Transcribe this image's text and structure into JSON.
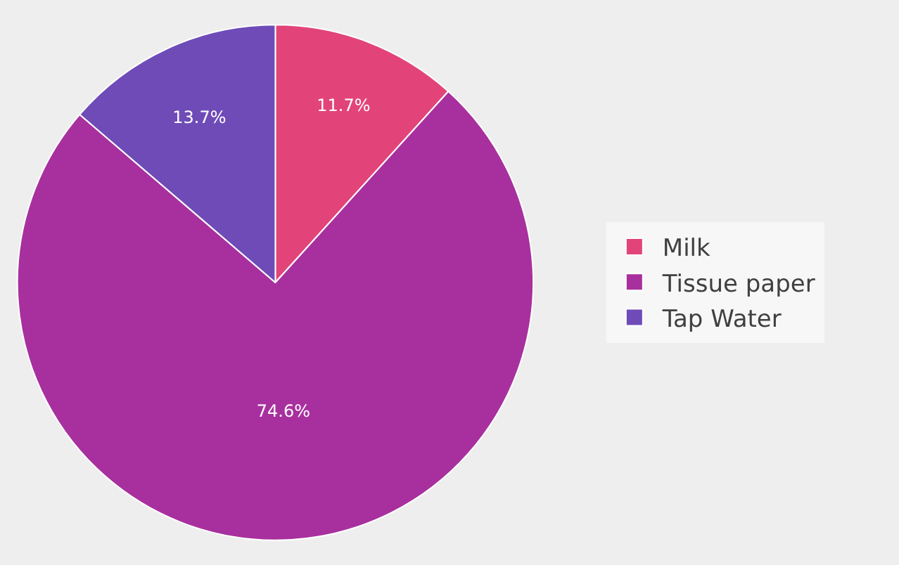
{
  "chart_data": {
    "type": "pie",
    "categories": [
      "Milk",
      "Tissue paper",
      "Tap Water"
    ],
    "values": [
      11.7,
      74.6,
      13.7
    ],
    "colors": [
      "#e2447a",
      "#a8309e",
      "#6f4bb8"
    ],
    "value_labels": [
      "11.7%",
      "74.6%",
      "13.7%"
    ],
    "legend": "right"
  }
}
